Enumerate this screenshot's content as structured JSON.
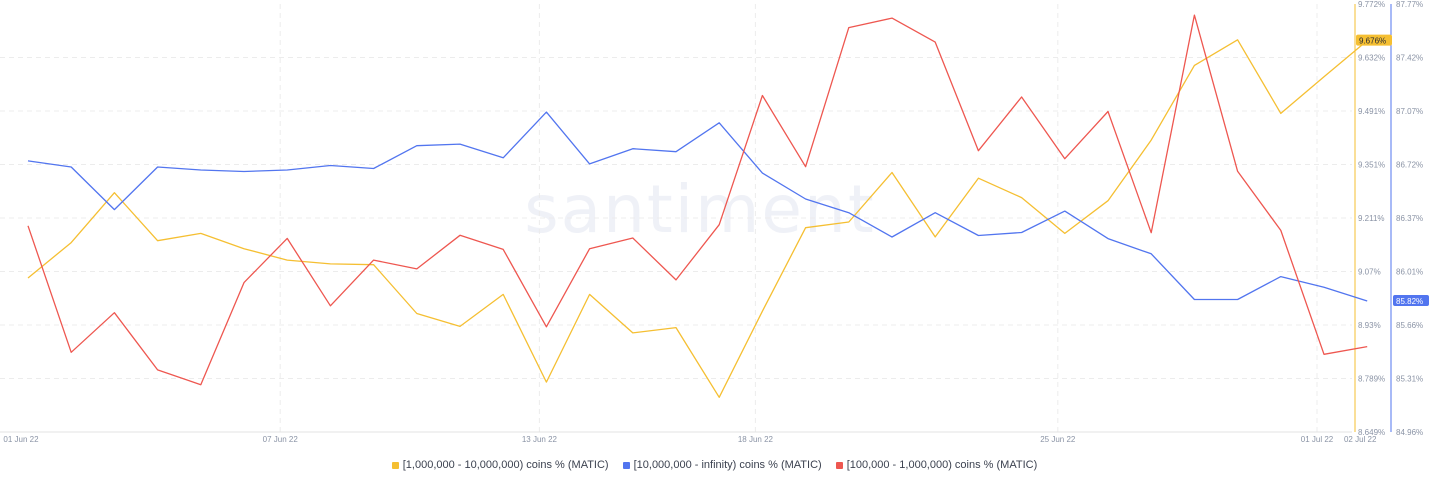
{
  "colors": {
    "yellow": "#f5bf32",
    "blue": "#5275ef",
    "red": "#ee5750",
    "grid": "#ececec",
    "axis_text": "#8a93a5"
  },
  "watermark": "santiment",
  "chart_data": {
    "type": "line",
    "x": [
      "01 Jun 22",
      "02 Jun 22",
      "03 Jun 22",
      "04 Jun 22",
      "05 Jun 22",
      "06 Jun 22",
      "07 Jun 22",
      "08 Jun 22",
      "09 Jun 22",
      "10 Jun 22",
      "11 Jun 22",
      "12 Jun 22",
      "13 Jun 22",
      "14 Jun 22",
      "15 Jun 22",
      "16 Jun 22",
      "17 Jun 22",
      "18 Jun 22",
      "19 Jun 22",
      "20 Jun 22",
      "21 Jun 22",
      "22 Jun 22",
      "23 Jun 22",
      "24 Jun 22",
      "25 Jun 22",
      "26 Jun 22",
      "27 Jun 22",
      "28 Jun 22",
      "29 Jun 22",
      "30 Jun 22",
      "01 Jul 22",
      "02 Jul 22"
    ],
    "x_tick_labels": [
      "01 Jun 22",
      "07 Jun 22",
      "13 Jun 22",
      "18 Jun 22",
      "25 Jun 22",
      "01 Jul 22",
      "02 Jul 22"
    ],
    "y_left_ticks": [
      "9.772%",
      "9.632%",
      "9.491%",
      "9.351%",
      "9.211%",
      "9.07%",
      "8.93%",
      "8.789%",
      "8.649%"
    ],
    "y_right_ticks": [
      "87.77%",
      "87.42%",
      "87.07%",
      "86.72%",
      "86.37%",
      "86.01%",
      "85.66%",
      "85.31%",
      "84.96%"
    ],
    "y_left_range": [
      8.649,
      9.772
    ],
    "y_right_range": [
      84.96,
      87.77
    ],
    "last_value_badges": {
      "yellow": "9.676%",
      "blue": "85.82%"
    },
    "series": [
      {
        "name": "[1,000,000 - 10,000,000) coins % (MATIC)",
        "color": "yellow",
        "axis": "left",
        "values": [
          9.053,
          9.146,
          9.277,
          9.151,
          9.17,
          9.13,
          9.1,
          9.09,
          9.088,
          8.96,
          8.926,
          9.01,
          8.78,
          9.01,
          8.909,
          8.923,
          8.74,
          8.966,
          9.185,
          9.2,
          9.33,
          9.161,
          9.315,
          9.264,
          9.17,
          9.256,
          9.415,
          9.611,
          9.678,
          9.485,
          9.581,
          9.676
        ]
      },
      {
        "name": "[10,000,000 - infinity) coins % (MATIC)",
        "color": "blue",
        "axis": "right",
        "values": [
          86.74,
          86.7,
          86.42,
          86.7,
          86.68,
          86.67,
          86.68,
          86.71,
          86.69,
          86.84,
          86.85,
          86.76,
          87.06,
          86.72,
          86.82,
          86.8,
          86.99,
          86.66,
          86.49,
          86.4,
          86.24,
          86.4,
          86.25,
          86.27,
          86.41,
          86.23,
          86.13,
          85.83,
          85.83,
          85.98,
          85.91,
          85.82
        ]
      },
      {
        "name": "[100,000  - 1,000,000) coins % (MATIC)",
        "color": "red",
        "axis": "left",
        "values": [
          9.19,
          8.858,
          8.962,
          8.812,
          8.773,
          9.041,
          9.157,
          8.98,
          9.1,
          9.077,
          9.165,
          9.128,
          8.925,
          9.13,
          9.158,
          9.048,
          9.193,
          9.532,
          9.345,
          9.71,
          9.735,
          9.672,
          9.387,
          9.528,
          9.366,
          9.49,
          9.172,
          9.743,
          9.333,
          9.178,
          8.853,
          8.873
        ]
      }
    ],
    "title": "",
    "xlabel": "",
    "ylabel": "",
    "grid": true,
    "legend_position": "bottom"
  }
}
